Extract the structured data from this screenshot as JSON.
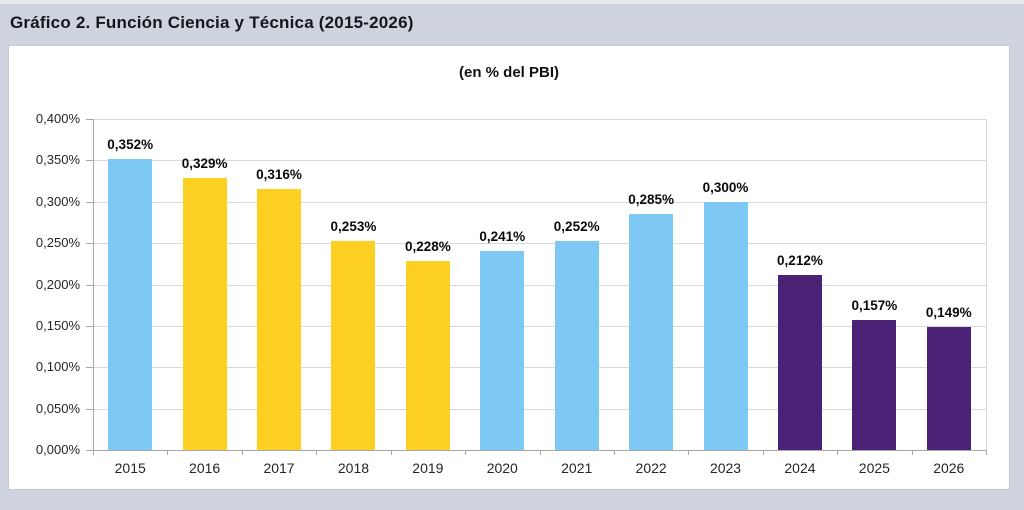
{
  "page": {
    "title": "Gráfico 2. Función Ciencia y Técnica (2015-2026)",
    "background_color": "#CFD3DD",
    "panel_color": "#FFFFFF"
  },
  "chart_data": {
    "type": "bar",
    "title": "Gráfico 2. Función Ciencia y Técnica (2015-2026)",
    "subtitle": "(en % del PBI)",
    "xlabel": "",
    "ylabel": "",
    "categories": [
      "2015",
      "2016",
      "2017",
      "2018",
      "2019",
      "2020",
      "2021",
      "2022",
      "2023",
      "2024",
      "2025",
      "2026"
    ],
    "values": [
      0.352,
      0.329,
      0.316,
      0.253,
      0.228,
      0.241,
      0.252,
      0.285,
      0.3,
      0.212,
      0.157,
      0.149
    ],
    "value_labels": [
      "0,352%",
      "0,329%",
      "0,316%",
      "0,253%",
      "0,228%",
      "0,241%",
      "0,252%",
      "0,285%",
      "0,300%",
      "0,212%",
      "0,157%",
      "0,149%"
    ],
    "bar_color_keys": [
      "blue",
      "yellow",
      "yellow",
      "yellow",
      "yellow",
      "blue",
      "blue",
      "blue",
      "blue",
      "purple",
      "purple",
      "purple"
    ],
    "palette": {
      "blue": "#7DC9F3",
      "yellow": "#FDD022",
      "purple": "#4A2377"
    },
    "ylim": [
      0,
      0.4
    ],
    "y_tick_values": [
      0.4,
      0.35,
      0.3,
      0.25,
      0.2,
      0.15,
      0.1,
      0.05,
      0.0
    ],
    "y_tick_labels": [
      "0,400%",
      "0,350%",
      "0,300%",
      "0,250%",
      "0,200%",
      "0,150%",
      "0,100%",
      "0,050%",
      "0,000%"
    ],
    "grid": true,
    "legend_position": "none",
    "gridline_color": "#D9D9D9",
    "axis_color": "#A6A6A6"
  }
}
